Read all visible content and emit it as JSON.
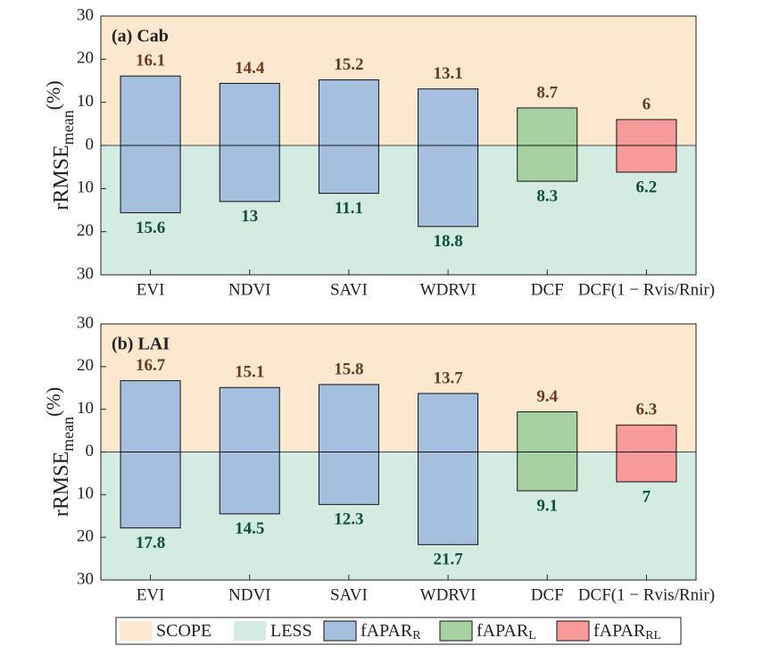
{
  "chart_data": [
    {
      "type": "diverging-bar",
      "panel_label": "(a) Cab",
      "ylabel": {
        "text": "rRMSE",
        "sub": "mean",
        "suffix": "(%)"
      },
      "categories": [
        "EVI",
        "NDVI",
        "SAVI",
        "WDRVI",
        "DCF",
        "DCF(1 − Rvis/Rnir)"
      ],
      "bar_colors": [
        "#a4c0de",
        "#a4c0de",
        "#a4c0de",
        "#a4c0de",
        "#a5d2a0",
        "#f79a9a"
      ],
      "series": [
        {
          "name": "SCOPE",
          "color": "#fbe8cf",
          "label_color": "#6b3a1e",
          "values": [
            16.1,
            14.4,
            15.2,
            13.1,
            8.7,
            6
          ]
        },
        {
          "name": "LESS",
          "color": "#d4ebe1",
          "label_color": "#0b4f3f",
          "values": [
            -15.6,
            -13,
            -11.1,
            -18.8,
            -8.3,
            -6.2
          ],
          "value_labels": [
            "15.6",
            "13",
            "11.1",
            "18.8",
            "8.3",
            "6.2"
          ]
        }
      ],
      "ylim": [
        -30,
        30
      ],
      "yticks": [
        {
          "value": -30,
          "label": "30"
        },
        {
          "value": -20,
          "label": "20"
        },
        {
          "value": -10,
          "label": "10"
        },
        0,
        10,
        20,
        30
      ]
    },
    {
      "type": "diverging-bar",
      "panel_label": "(b) LAI",
      "ylabel": {
        "text": "rRMSE",
        "sub": "mean",
        "suffix": "(%)"
      },
      "categories": [
        "EVI",
        "NDVI",
        "SAVI",
        "WDRVI",
        "DCF",
        "DCF(1 − Rvis/Rnir)"
      ],
      "bar_colors": [
        "#a4c0de",
        "#a4c0de",
        "#a4c0de",
        "#a4c0de",
        "#a5d2a0",
        "#f79a9a"
      ],
      "series": [
        {
          "name": "SCOPE",
          "color": "#fbe8cf",
          "label_color": "#6b3a1e",
          "values": [
            16.7,
            15.1,
            15.8,
            13.7,
            9.4,
            6.3
          ]
        },
        {
          "name": "LESS",
          "color": "#d4ebe1",
          "label_color": "#0b4f3f",
          "values": [
            -17.8,
            -14.5,
            -12.3,
            -21.7,
            -9.1,
            -7
          ],
          "value_labels": [
            "17.8",
            "14.5",
            "12.3",
            "21.7",
            "9.1",
            "7"
          ]
        }
      ],
      "ylim": [
        -30,
        30
      ],
      "yticks": [
        {
          "value": -30,
          "label": "30"
        },
        {
          "value": -20,
          "label": "20"
        },
        {
          "value": -10,
          "label": "10"
        },
        0,
        10,
        20,
        30
      ]
    }
  ],
  "legend": [
    {
      "label": "SCOPE",
      "color": "#fbe8cf"
    },
    {
      "label": "LESS",
      "color": "#d4ebe1"
    },
    {
      "label": "fAPAR",
      "sub": "R",
      "color": "#a4c0de"
    },
    {
      "label": "fAPAR",
      "sub": "L",
      "color": "#a5d2a0"
    },
    {
      "label": "fAPAR",
      "sub": "RL",
      "color": "#f79a9a"
    }
  ]
}
